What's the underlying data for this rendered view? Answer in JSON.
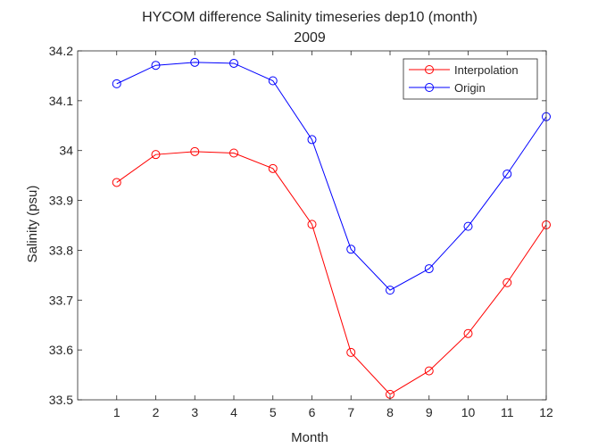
{
  "chart_data": {
    "type": "line",
    "title": "HYCOM difference Salinity timeseries dep10 (month)",
    "subtitle": "2009",
    "xlabel": "Month",
    "ylabel": "Salinity (psu)",
    "x": [
      1,
      2,
      3,
      4,
      5,
      6,
      7,
      8,
      9,
      10,
      11,
      12
    ],
    "xlim": [
      0,
      12
    ],
    "ylim": [
      33.5,
      34.2
    ],
    "xticks": [
      "1",
      "2",
      "3",
      "4",
      "5",
      "6",
      "7",
      "8",
      "9",
      "10",
      "11",
      "12"
    ],
    "yticks": [
      "33.5",
      "33.6",
      "33.7",
      "33.8",
      "33.9",
      "34",
      "34.1",
      "34.2"
    ],
    "grid": false,
    "legend_position": "top-right",
    "series": [
      {
        "name": "Interpolation",
        "color": "#ff0000",
        "marker": "circle",
        "values": [
          33.936,
          33.992,
          33.998,
          33.995,
          33.964,
          33.852,
          33.595,
          33.511,
          33.558,
          33.633,
          33.735,
          33.851
        ]
      },
      {
        "name": "Origin",
        "color": "#0000ff",
        "marker": "circle",
        "values": [
          34.134,
          34.171,
          34.177,
          34.175,
          34.14,
          34.022,
          33.802,
          33.72,
          33.763,
          33.848,
          33.953,
          34.068
        ]
      }
    ]
  }
}
